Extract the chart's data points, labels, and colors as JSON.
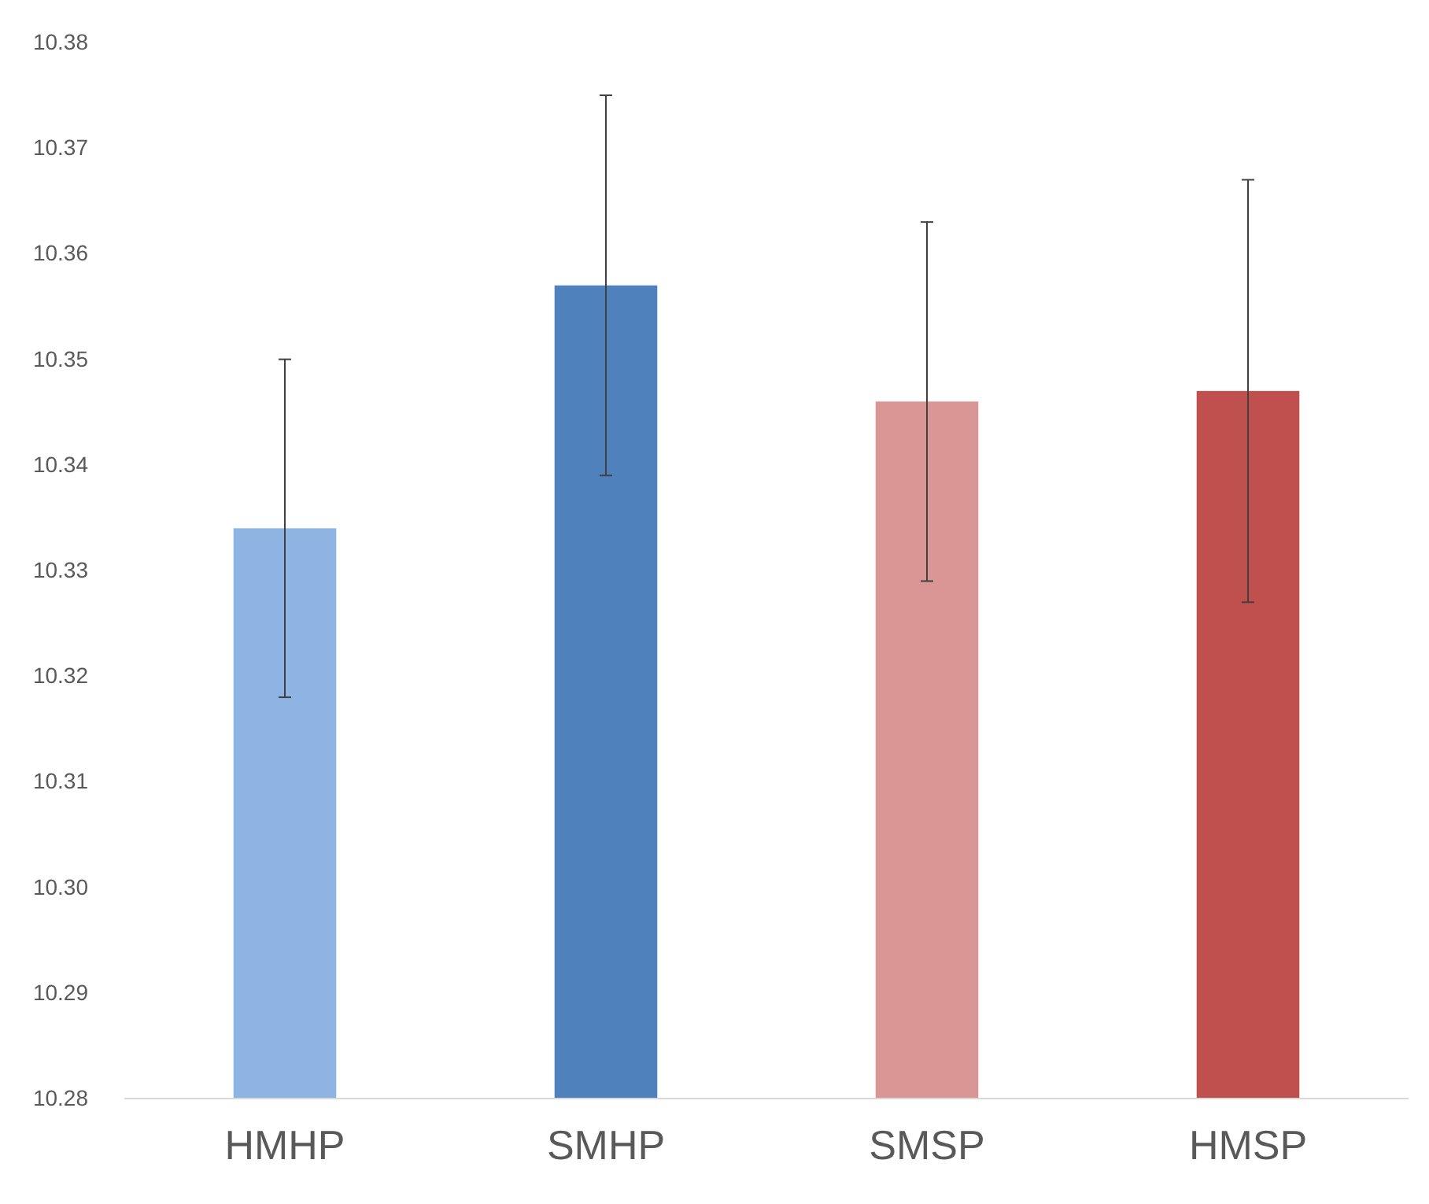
{
  "chart_data": {
    "type": "bar",
    "categories": [
      "HMHP",
      "SMHP",
      "SMSP",
      "HMSP"
    ],
    "values": [
      10.334,
      10.357,
      10.346,
      10.347
    ],
    "colors": [
      "#8eb4e3",
      "#4f81bd",
      "#d99694",
      "#c0504d"
    ],
    "errors": [
      0.016,
      0.018,
      0.017,
      0.02
    ],
    "ylim": [
      10.28,
      10.38
    ],
    "yticks": [
      {
        "value": 10.28,
        "label": "10.28"
      },
      {
        "value": 10.29,
        "label": "10.29"
      },
      {
        "value": 10.3,
        "label": "10.30"
      },
      {
        "value": 10.31,
        "label": "10.31"
      },
      {
        "value": 10.32,
        "label": "10.32"
      },
      {
        "value": 10.33,
        "label": "10.33"
      },
      {
        "value": 10.34,
        "label": "10.34"
      },
      {
        "value": 10.35,
        "label": "10.35"
      },
      {
        "value": 10.36,
        "label": "10.36"
      },
      {
        "value": 10.37,
        "label": "10.37"
      },
      {
        "value": 10.38,
        "label": "10.38"
      }
    ]
  }
}
